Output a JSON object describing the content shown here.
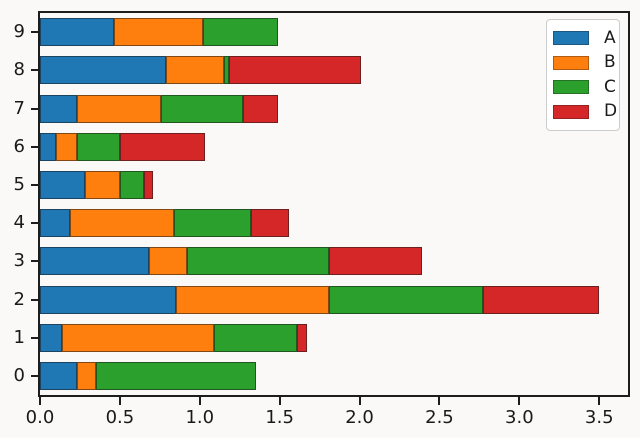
{
  "style": {
    "figure_background": "#faf9f7",
    "axes_background": "#faf9f7",
    "spine_color": "#1d1d1d",
    "tick_color": "#1d1d1d",
    "tick_label_color": "#1a1a1a",
    "bar_edge_color": "rgba(25,25,25,0.55)",
    "legend_border_color": "#cccccc"
  },
  "chart_data": {
    "type": "bar",
    "orientation": "horizontal",
    "stacked": true,
    "title": "",
    "xlabel": "",
    "ylabel": "",
    "grid": false,
    "categories": [
      "0",
      "1",
      "2",
      "3",
      "4",
      "5",
      "6",
      "7",
      "8",
      "9"
    ],
    "categories_display_order_top_to_bottom": [
      "9",
      "8",
      "7",
      "6",
      "5",
      "4",
      "3",
      "2",
      "1",
      "0"
    ],
    "series": [
      {
        "name": "A",
        "color": "#1f77b4",
        "values": [
          0.23,
          0.14,
          0.85,
          0.68,
          0.19,
          0.28,
          0.1,
          0.23,
          0.79,
          0.46
        ]
      },
      {
        "name": "B",
        "color": "#ff7f0e",
        "values": [
          0.12,
          0.95,
          0.96,
          0.24,
          0.65,
          0.22,
          0.13,
          0.53,
          0.36,
          0.56
        ]
      },
      {
        "name": "C",
        "color": "#2ca02c",
        "values": [
          1.0,
          0.52,
          0.96,
          0.89,
          0.48,
          0.15,
          0.27,
          0.51,
          0.03,
          0.47
        ]
      },
      {
        "name": "D",
        "color": "#d62728",
        "values": [
          0.0,
          0.06,
          0.73,
          0.58,
          0.24,
          0.06,
          0.53,
          0.22,
          0.83,
          0.0
        ]
      }
    ],
    "totals": [
      1.35,
      1.67,
      3.5,
      2.39,
      1.56,
      0.71,
      1.03,
      1.49,
      2.01,
      1.49
    ],
    "xlim": [
      0,
      3.68
    ],
    "ylim_categories": 10,
    "x_ticks": [
      {
        "value": 0.0,
        "label": "0.0"
      },
      {
        "value": 0.5,
        "label": "0.5"
      },
      {
        "value": 1.0,
        "label": "1.0"
      },
      {
        "value": 1.5,
        "label": "1.5"
      },
      {
        "value": 2.0,
        "label": "2.0"
      },
      {
        "value": 2.5,
        "label": "2.5"
      },
      {
        "value": 3.0,
        "label": "3.0"
      },
      {
        "value": 3.5,
        "label": "3.5"
      }
    ],
    "legend": {
      "position": "upper right",
      "entries": [
        "A",
        "B",
        "C",
        "D"
      ]
    }
  }
}
